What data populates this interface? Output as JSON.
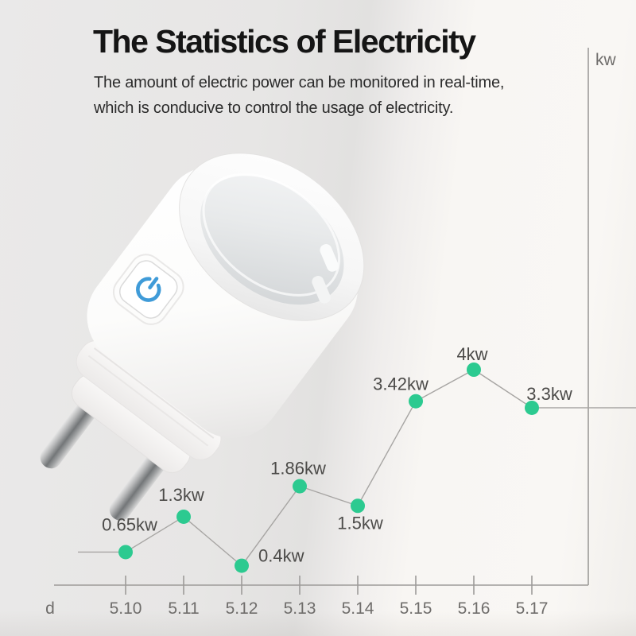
{
  "header": {
    "title": "The Statistics of Electricity",
    "subtitle_line1": "The amount of electric power can be monitored in real-time,",
    "subtitle_line2": "which is conducive to control the usage of electricity."
  },
  "chart_data": {
    "type": "line",
    "title": "",
    "xlabel": "d",
    "ylabel": "kw",
    "categories": [
      "5.10",
      "5.11",
      "5.12",
      "5.13",
      "5.14",
      "5.15",
      "5.16",
      "5.17"
    ],
    "values": [
      0.65,
      1.3,
      0.4,
      1.86,
      1.5,
      3.42,
      4,
      3.3
    ],
    "point_labels": [
      "0.65kw",
      "1.3kw",
      "0.4kw",
      "1.86kw",
      "1.5kw",
      "3.42kw",
      "4kw",
      "3.3kw"
    ],
    "ylim": [
      0,
      5
    ],
    "grid": false,
    "legend": false,
    "y_axis_side": "right",
    "colors": {
      "point": "#2cca90",
      "line": "#a7a5a3",
      "axis": "#9d9b99",
      "point_label": "#4c4b49",
      "tick_label": "#6f6d6b"
    }
  },
  "product": {
    "type_label": "smart-plug",
    "accent_blue": "#3f9bd8"
  }
}
